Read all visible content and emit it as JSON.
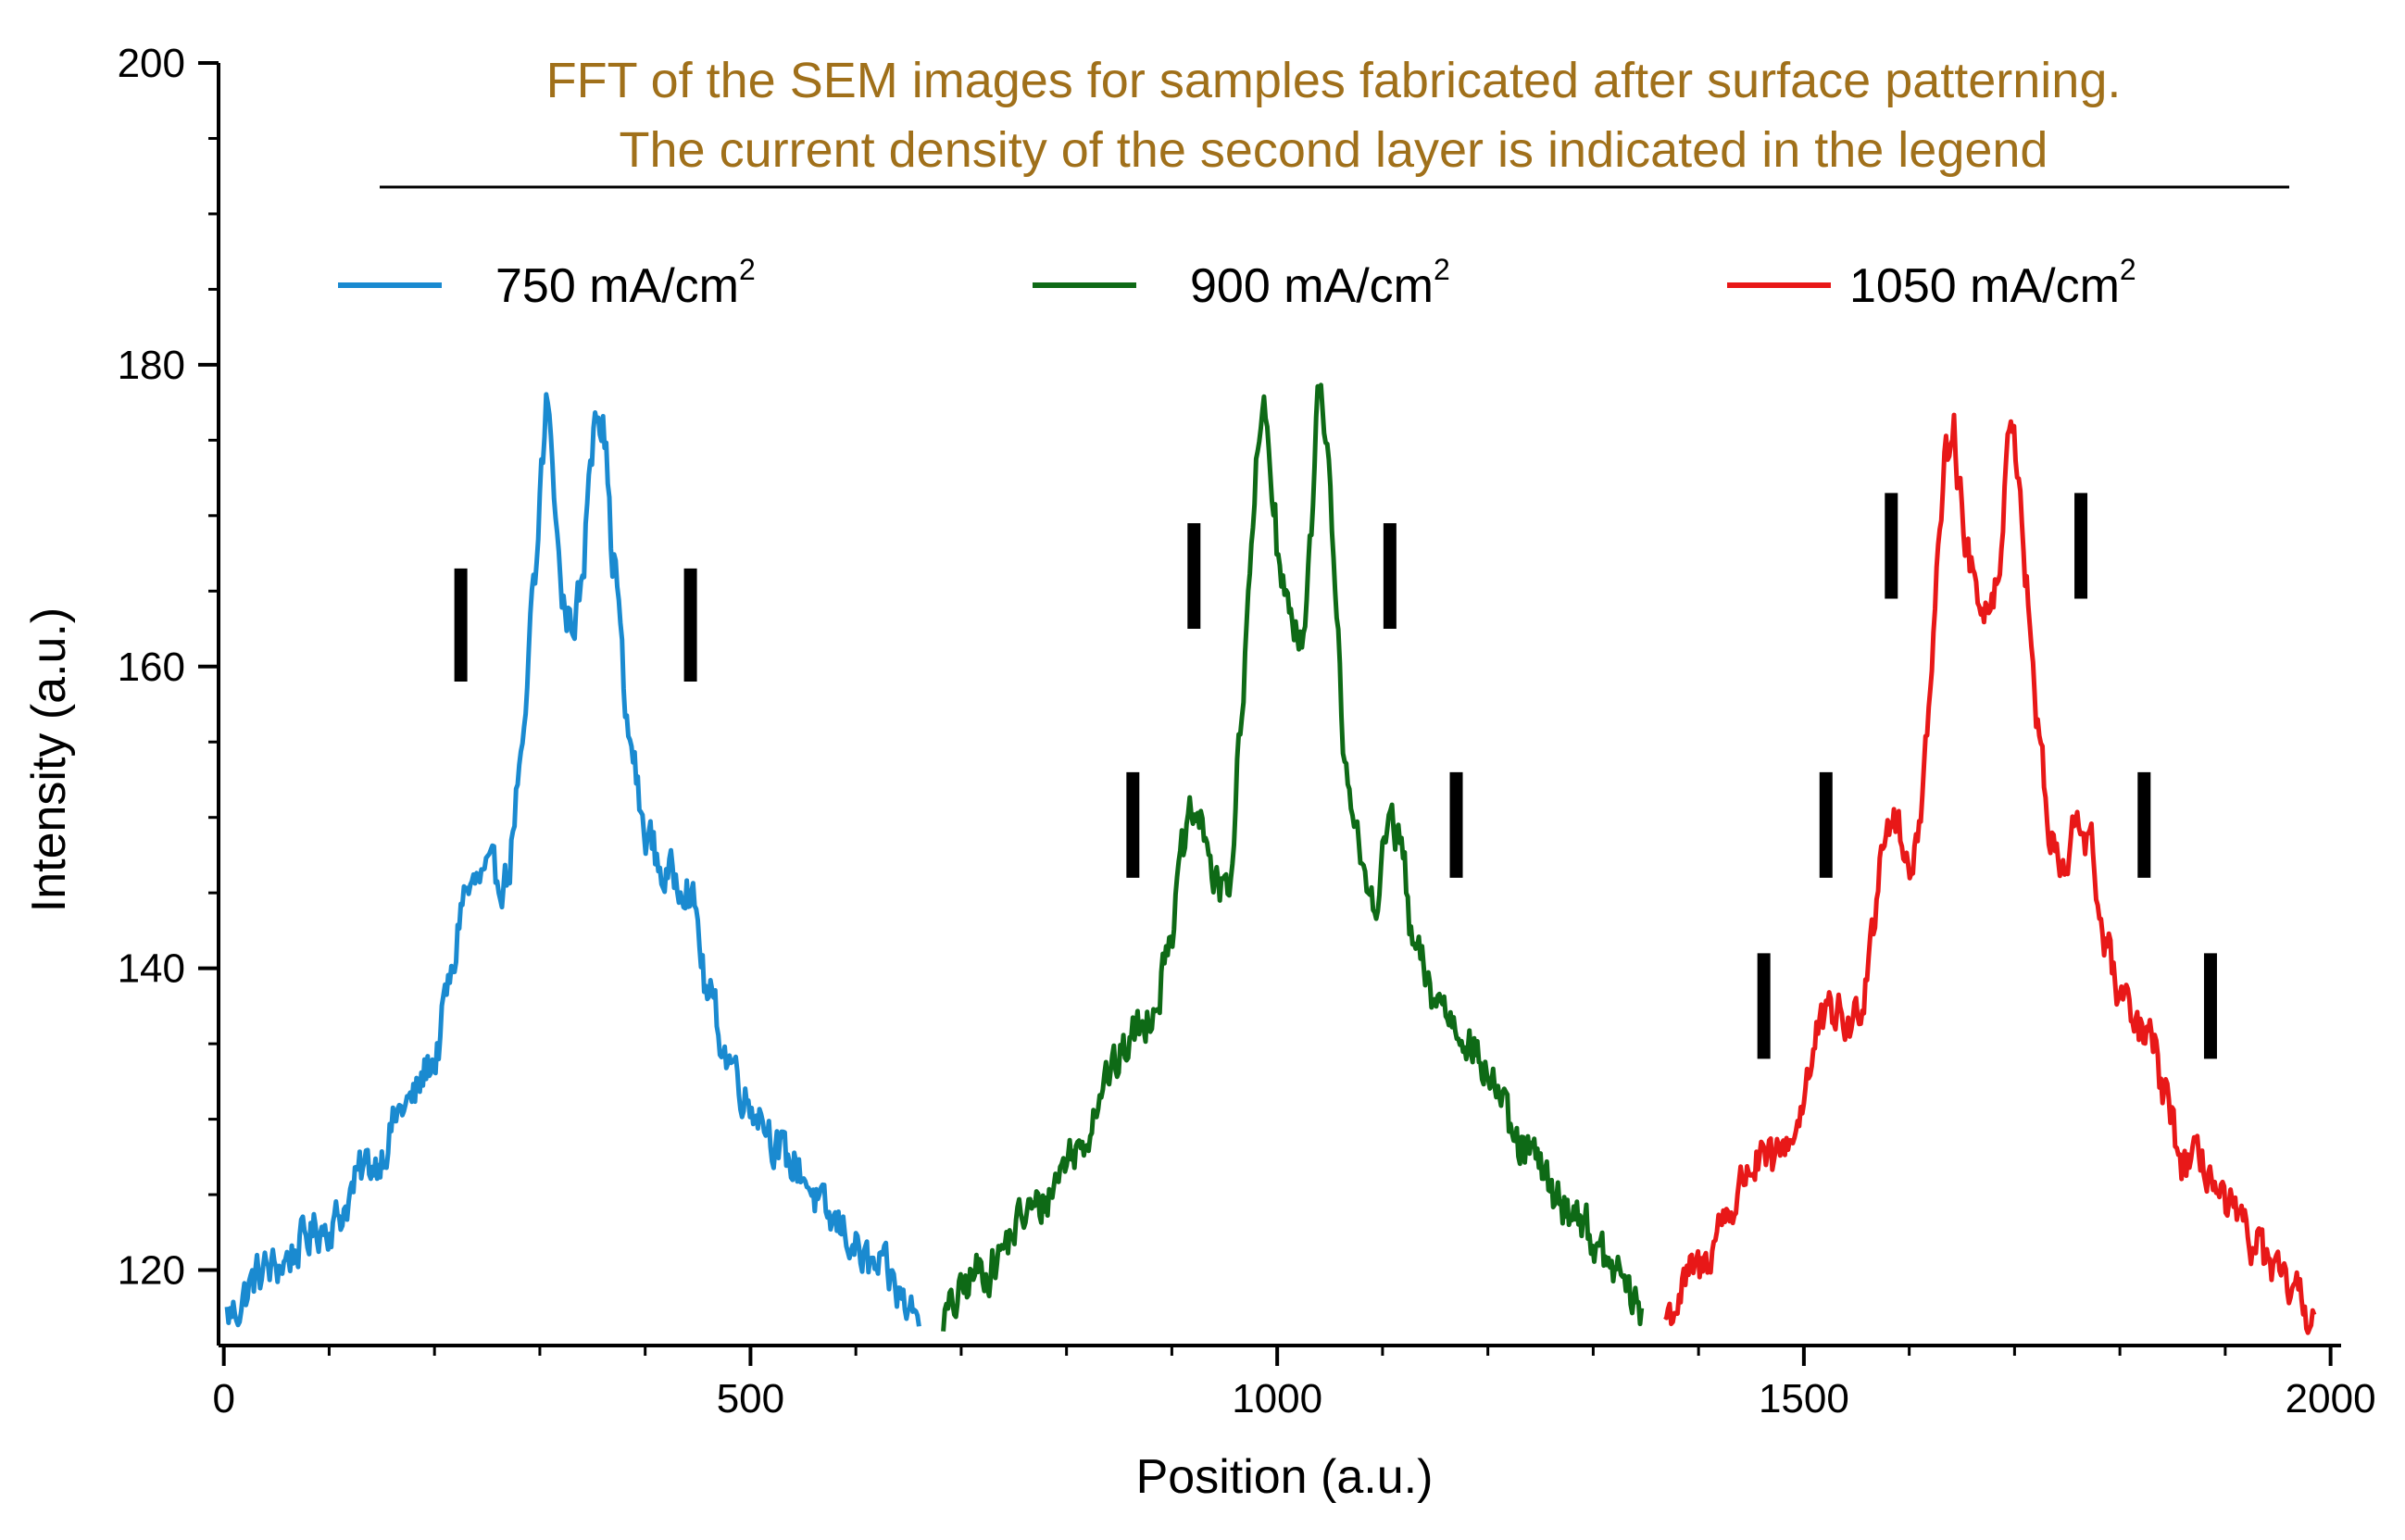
{
  "chart_data": {
    "type": "line",
    "title": [
      "FFT of the SEM images for samples  fabricated after surface patterning.",
      "The current density of the second layer is indicated in the legend"
    ],
    "title_color": "#a0701a",
    "xlabel": "Position (a.u.)",
    "ylabel": "Intensity (a.u.)",
    "xlim": [
      -5,
      2010
    ],
    "ylim": [
      115,
      200
    ],
    "xticks": [
      0,
      500,
      1000,
      1500,
      2000
    ],
    "yticks": [
      120,
      140,
      160,
      180,
      200
    ],
    "grid": false,
    "legend_position": "top",
    "series": [
      {
        "name": "750 mA/cm",
        "name_sup": "2",
        "color": "#1a8ad0",
        "x_range": [
          3,
          660
        ],
        "peaks": [
          {
            "x": 305,
            "y": 178
          },
          {
            "x": 355,
            "y": 178
          },
          {
            "x": 240,
            "y": 146
          },
          {
            "x": 430,
            "y": 146
          }
        ],
        "anchors": [
          [
            3,
            117
          ],
          [
            40,
            120
          ],
          [
            100,
            123
          ],
          [
            140,
            127
          ],
          [
            175,
            131
          ],
          [
            200,
            134
          ],
          [
            215,
            139
          ],
          [
            228,
            145
          ],
          [
            250,
            146
          ],
          [
            268,
            146
          ],
          [
            282,
            153
          ],
          [
            295,
            165
          ],
          [
            303,
            174
          ],
          [
            307,
            178
          ],
          [
            314,
            171
          ],
          [
            322,
            164
          ],
          [
            330,
            163
          ],
          [
            340,
            165
          ],
          [
            348,
            174
          ],
          [
            353,
            178
          ],
          [
            360,
            176
          ],
          [
            370,
            167
          ],
          [
            385,
            155
          ],
          [
            400,
            149
          ],
          [
            420,
            146
          ],
          [
            438,
            146
          ],
          [
            446,
            144
          ],
          [
            460,
            138
          ],
          [
            480,
            134
          ],
          [
            500,
            131
          ],
          [
            540,
            127
          ],
          [
            580,
            123
          ],
          [
            620,
            120
          ],
          [
            660,
            117
          ]
        ],
        "markers": [
          {
            "x": 225,
            "y_bottom": 159,
            "y_top": 166.5
          },
          {
            "x": 443,
            "y_bottom": 159,
            "y_top": 166.5
          }
        ]
      },
      {
        "name": "900 mA/cm",
        "name_sup": "2",
        "color": "#0e6a16",
        "x_range": [
          683,
          1347
        ],
        "peaks": [
          {
            "x": 988,
            "y": 178
          },
          {
            "x": 1041,
            "y": 178
          },
          {
            "x": 920,
            "y": 150
          },
          {
            "x": 1107,
            "y": 150
          },
          {
            "x": 860,
            "y": 136
          },
          {
            "x": 1170,
            "y": 136
          }
        ],
        "anchors": [
          [
            683,
            117
          ],
          [
            720,
            120
          ],
          [
            770,
            124
          ],
          [
            810,
            128
          ],
          [
            840,
            133
          ],
          [
            870,
            136
          ],
          [
            885,
            138
          ],
          [
            900,
            143
          ],
          [
            912,
            148
          ],
          [
            920,
            150
          ],
          [
            932,
            149
          ],
          [
            942,
            145
          ],
          [
            955,
            146
          ],
          [
            965,
            155
          ],
          [
            975,
            167
          ],
          [
            982,
            174
          ],
          [
            988,
            178
          ],
          [
            995,
            172
          ],
          [
            1003,
            166
          ],
          [
            1010,
            164
          ],
          [
            1018,
            163
          ],
          [
            1026,
            162
          ],
          [
            1033,
            170
          ],
          [
            1040,
            178
          ],
          [
            1047,
            174
          ],
          [
            1055,
            165
          ],
          [
            1065,
            154
          ],
          [
            1075,
            148
          ],
          [
            1085,
            145
          ],
          [
            1095,
            145
          ],
          [
            1107,
            150
          ],
          [
            1117,
            148
          ],
          [
            1130,
            141
          ],
          [
            1150,
            138
          ],
          [
            1175,
            136
          ],
          [
            1200,
            133
          ],
          [
            1230,
            128
          ],
          [
            1280,
            124
          ],
          [
            1320,
            120
          ],
          [
            1347,
            117
          ]
        ],
        "markers": [
          {
            "x": 921,
            "y_bottom": 162.5,
            "y_top": 169.5
          },
          {
            "x": 1107,
            "y_bottom": 162.5,
            "y_top": 169.5
          },
          {
            "x": 863,
            "y_bottom": 146,
            "y_top": 153
          },
          {
            "x": 1170,
            "y_bottom": 146,
            "y_top": 153
          }
        ]
      },
      {
        "name": "1050 mA/cm",
        "name_sup": "2",
        "color": "#e81818",
        "x_range": [
          1368,
          1985
        ],
        "peaks": [
          {
            "x": 1641,
            "y": 177
          },
          {
            "x": 1697,
            "y": 177
          },
          {
            "x": 1578,
            "y": 150
          },
          {
            "x": 1762,
            "y": 150
          },
          {
            "x": 1522,
            "y": 137
          },
          {
            "x": 1820,
            "y": 136
          },
          {
            "x": 1460,
            "y": 127
          },
          {
            "x": 1882,
            "y": 127
          }
        ],
        "anchors": [
          [
            1368,
            117
          ],
          [
            1400,
            120
          ],
          [
            1430,
            124
          ],
          [
            1450,
            127
          ],
          [
            1470,
            127
          ],
          [
            1490,
            129
          ],
          [
            1505,
            133
          ],
          [
            1515,
            136
          ],
          [
            1530,
            137
          ],
          [
            1545,
            136
          ],
          [
            1555,
            138
          ],
          [
            1565,
            143
          ],
          [
            1575,
            149
          ],
          [
            1585,
            150
          ],
          [
            1597,
            147
          ],
          [
            1607,
            148
          ],
          [
            1618,
            157
          ],
          [
            1628,
            167
          ],
          [
            1636,
            174
          ],
          [
            1641,
            177
          ],
          [
            1648,
            172
          ],
          [
            1656,
            167
          ],
          [
            1665,
            165
          ],
          [
            1675,
            164
          ],
          [
            1685,
            166
          ],
          [
            1692,
            173
          ],
          [
            1697,
            177
          ],
          [
            1704,
            173
          ],
          [
            1712,
            165
          ],
          [
            1722,
            156
          ],
          [
            1735,
            148
          ],
          [
            1748,
            146
          ],
          [
            1760,
            150
          ],
          [
            1772,
            148
          ],
          [
            1785,
            142
          ],
          [
            1800,
            138
          ],
          [
            1815,
            136
          ],
          [
            1830,
            135
          ],
          [
            1845,
            131
          ],
          [
            1860,
            127
          ],
          [
            1880,
            127
          ],
          [
            1900,
            124
          ],
          [
            1925,
            122
          ],
          [
            1955,
            119
          ],
          [
            1985,
            117
          ]
        ],
        "markers": [
          {
            "x": 1583,
            "y_bottom": 164.5,
            "y_top": 171.5
          },
          {
            "x": 1763,
            "y_bottom": 164.5,
            "y_top": 171.5
          },
          {
            "x": 1521,
            "y_bottom": 146,
            "y_top": 153
          },
          {
            "x": 1823,
            "y_bottom": 146,
            "y_top": 153
          },
          {
            "x": 1462,
            "y_bottom": 134,
            "y_top": 141
          },
          {
            "x": 1886,
            "y_bottom": 134,
            "y_top": 141
          }
        ]
      }
    ]
  }
}
